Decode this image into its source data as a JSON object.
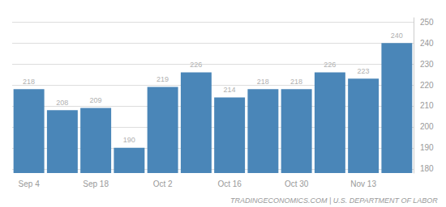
{
  "chart_data": {
    "type": "bar",
    "categories": [
      "Sep 4",
      null,
      "Sep 18",
      null,
      "Oct 2",
      null,
      "Oct 16",
      null,
      "Oct 30",
      null,
      "Nov 13",
      null
    ],
    "values": [
      218,
      208,
      209,
      190,
      219,
      226,
      214,
      218,
      218,
      226,
      223,
      240
    ],
    "color": "#4a86b8",
    "ylim": [
      178,
      252
    ],
    "yticks": [
      180,
      190,
      200,
      210,
      220,
      230,
      240,
      250
    ],
    "grid": true,
    "data_labels": true,
    "annotations": [
      "TRADINGECONOMICS.COM | U.S. DEPARTMENT OF LABOR"
    ]
  }
}
